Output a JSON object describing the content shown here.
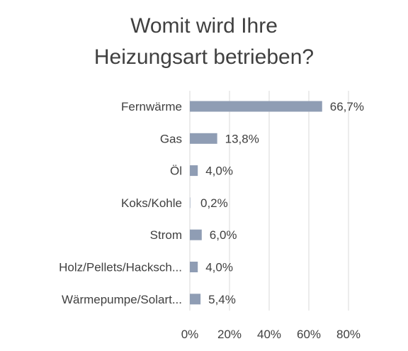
{
  "chart_data": {
    "type": "bar",
    "orientation": "horizontal",
    "title_lines": [
      "Womit wird Ihre",
      "Heizungsart betrieben?"
    ],
    "categories": [
      "Fernwärme",
      "Gas",
      "Öl",
      "Koks/Kohle",
      "Strom",
      "Holz/Pellets/Hacksch...",
      "Wärmepumpe/Solart..."
    ],
    "values": [
      66.7,
      13.8,
      4.0,
      0.2,
      6.0,
      4.0,
      5.4
    ],
    "data_labels": [
      "66,7%",
      "13,8%",
      "4,0%",
      "0,2%",
      "6,0%",
      "4,0%",
      "5,4%"
    ],
    "x_ticks": [
      0,
      20,
      40,
      60,
      80
    ],
    "x_tick_labels": [
      "0%",
      "20%",
      "40%",
      "60%",
      "80%"
    ],
    "xlim": [
      0,
      80
    ],
    "grid": true,
    "legend": "none",
    "bar_color": "#8f9db4",
    "grid_color": "#d9d9d9",
    "text_color": "#404040"
  }
}
